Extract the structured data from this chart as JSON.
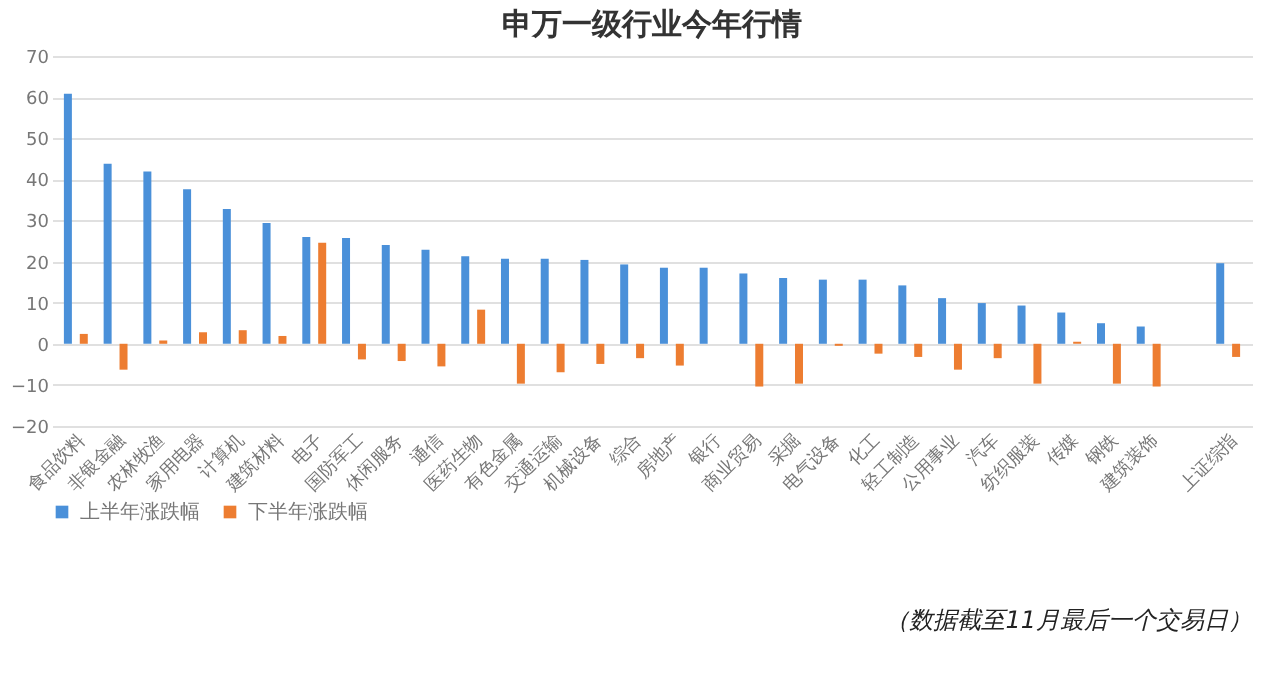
{
  "chart_data": {
    "type": "bar",
    "title": "申万一级行业今年行情",
    "categories": [
      "食品饮料",
      "非银金融",
      "农林牧渔",
      "家用电器",
      "计算机",
      "建筑材料",
      "电子",
      "国防军工",
      "休闲服务",
      "通信",
      "医药生物",
      "有色金属",
      "交通运输",
      "机械设备",
      "综合",
      "房地产",
      "银行",
      "商业贸易",
      "采掘",
      "电气设备",
      "化工",
      "轻工制造",
      "公用事业",
      "汽车",
      "纺织服装",
      "传媒",
      "钢铁",
      "建筑装饰",
      null,
      "上证综指"
    ],
    "series": [
      {
        "name": "上半年涨跌幅",
        "color": "#4a90d9",
        "values": [
          60.8,
          43.8,
          41.9,
          37.6,
          32.8,
          29.4,
          26.0,
          25.7,
          24.0,
          22.9,
          21.3,
          20.7,
          20.7,
          20.4,
          19.3,
          18.5,
          18.5,
          17.1,
          16.0,
          15.6,
          15.6,
          14.2,
          11.1,
          9.9,
          9.3,
          7.6,
          5.0,
          4.2,
          null,
          19.6
        ]
      },
      {
        "name": "下半年涨跌幅",
        "color": "#ed7d31",
        "values": [
          2.4,
          -6.3,
          0.8,
          2.8,
          3.3,
          1.9,
          24.6,
          -3.8,
          -4.2,
          -5.5,
          8.3,
          -9.7,
          -6.9,
          -4.9,
          -3.5,
          -5.3,
          0,
          -10.4,
          -9.7,
          -0.5,
          -2.4,
          -3.2,
          -6.3,
          -3.5,
          -9.7,
          0.5,
          -9.7,
          -10.4,
          null,
          -3.2
        ]
      }
    ],
    "ylim": [
      -20,
      70
    ],
    "yticks": [
      -20,
      -10,
      0,
      10,
      20,
      30,
      40,
      50,
      60,
      70
    ],
    "grid": "y",
    "legend": "bottom",
    "annotations": [
      "（数据截至11月最后一个交易日）"
    ]
  }
}
